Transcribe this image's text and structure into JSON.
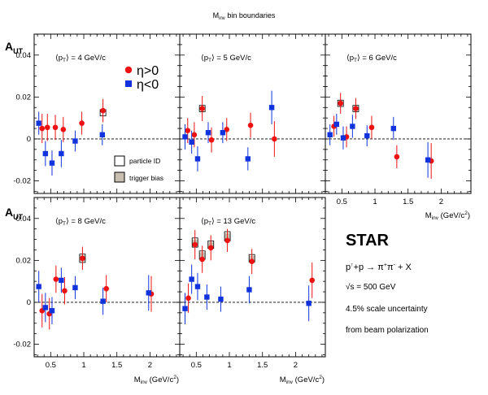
{
  "figure": {
    "top_title": "M",
    "top_title_sub": "inv",
    "top_title_rest": " bin boundaries",
    "ylabel_main": "A",
    "ylabel_sub": "UT",
    "xlabel_main": "M",
    "xlabel_sub": "inv",
    "xlabel_unit": " (GeV/c",
    "xlabel_sup": "2",
    "xlabel_close": ")",
    "star_label": "STAR",
    "reaction_p": "p",
    "reaction_arrow_sup": "↑",
    "reaction_rest": "+p → π",
    "reaction_pi_plus": "+",
    "reaction_pi2": "π",
    "reaction_pi_minus": "-",
    "reaction_end": " + X",
    "sqrt_s": "√s = 500 GeV",
    "scale_unc_line1": "4.5% scale uncertainty",
    "scale_unc_line2": "from beam polarization",
    "legend_eta_pos": "η>0",
    "legend_eta_neg": "η<0",
    "legend_pid": "particle ID",
    "legend_trig": "trigger bias",
    "colors": {
      "eta_pos": "#ee1111",
      "eta_neg": "#1133dd",
      "trig_fill": "#c8bfb0"
    }
  },
  "chart_data": [
    {
      "type": "scatter",
      "panel": "pt4",
      "title_pre": "⟨p",
      "title_sub": "T",
      "title_post": "⟩ = 4 GeV/c",
      "xlim": [
        0.25,
        2.45
      ],
      "ylim": [
        -0.026,
        0.05
      ],
      "yticks": [
        "0.04",
        "0.02",
        "0",
        "-0.02"
      ],
      "xticks": [],
      "series": [
        {
          "name": "η>0",
          "color": "#ee1111",
          "marker": "circle",
          "points": [
            [
              0.37,
              0.005,
              0.007
            ],
            [
              0.45,
              0.0055,
              0.0065
            ],
            [
              0.57,
              0.0055,
              0.006
            ],
            [
              0.69,
              0.0045,
              0.006
            ],
            [
              0.97,
              0.0075,
              0.0055
            ],
            [
              1.29,
              0.0135,
              0.0055
            ]
          ]
        },
        {
          "name": "η<0",
          "color": "#1133dd",
          "marker": "square",
          "points": [
            [
              0.32,
              0.0075,
              0.0055
            ],
            [
              0.42,
              -0.007,
              0.006
            ],
            [
              0.52,
              -0.0115,
              0.006
            ],
            [
              0.66,
              -0.007,
              0.0065
            ],
            [
              0.87,
              -0.001,
              0.005
            ],
            [
              1.28,
              0.002,
              0.005
            ]
          ]
        }
      ],
      "pid_boxes": [
        [
          1.29,
          0.0125,
          0.0015
        ]
      ],
      "trig_boxes": []
    },
    {
      "type": "scatter",
      "panel": "pt5",
      "title_pre": "⟨p",
      "title_sub": "T",
      "title_post": "⟩ = 5 GeV/c",
      "xlim": [
        0.25,
        2.45
      ],
      "ylim": [
        -0.026,
        0.05
      ],
      "yticks": [],
      "xticks": [],
      "series": [
        {
          "name": "η>0",
          "color": "#ee1111",
          "marker": "circle",
          "points": [
            [
              0.37,
              0.004,
              0.006
            ],
            [
              0.47,
              0.002,
              0.006
            ],
            [
              0.59,
              0.0145,
              0.006
            ],
            [
              0.73,
              -0.0005,
              0.006
            ],
            [
              0.96,
              0.0045,
              0.0055
            ],
            [
              1.32,
              0.0065,
              0.006
            ],
            [
              1.68,
              0.0,
              0.0085
            ]
          ]
        },
        {
          "name": "η<0",
          "color": "#1133dd",
          "marker": "square",
          "points": [
            [
              0.33,
              0.001,
              0.006
            ],
            [
              0.43,
              -0.0015,
              0.0055
            ],
            [
              0.52,
              -0.0095,
              0.006
            ],
            [
              0.68,
              0.003,
              0.005
            ],
            [
              0.9,
              0.003,
              0.005
            ],
            [
              1.28,
              -0.0095,
              0.0055
            ],
            [
              1.64,
              0.015,
              0.008
            ]
          ]
        }
      ],
      "pid_boxes": [
        [
          0.59,
          0.0145,
          0.0015
        ]
      ],
      "trig_boxes": []
    },
    {
      "type": "scatter",
      "panel": "pt6",
      "title_pre": "⟨p",
      "title_sub": "T",
      "title_post": "⟩ = 6 GeV/c",
      "xlim": [
        0.25,
        2.45
      ],
      "ylim": [
        -0.026,
        0.05
      ],
      "yticks": [],
      "xticks": [
        "0.5",
        "1",
        "1.5",
        "2"
      ],
      "series": [
        {
          "name": "η>0",
          "color": "#ee1111",
          "marker": "circle",
          "points": [
            [
              0.38,
              0.006,
              0.005
            ],
            [
              0.48,
              0.017,
              0.005
            ],
            [
              0.57,
              0.001,
              0.005
            ],
            [
              0.71,
              0.0145,
              0.005
            ],
            [
              0.95,
              0.0055,
              0.0055
            ],
            [
              1.33,
              -0.0085,
              0.0055
            ],
            [
              1.85,
              -0.0105,
              0.0085
            ]
          ]
        },
        {
          "name": "η<0",
          "color": "#1133dd",
          "marker": "square",
          "points": [
            [
              0.32,
              0.002,
              0.005
            ],
            [
              0.42,
              0.007,
              0.005
            ],
            [
              0.52,
              0.0005,
              0.0055
            ],
            [
              0.66,
              0.006,
              0.0055
            ],
            [
              0.88,
              0.0015,
              0.005
            ],
            [
              1.28,
              0.005,
              0.0055
            ],
            [
              1.8,
              -0.01,
              0.0085
            ]
          ]
        }
      ],
      "pid_boxes": [
        [
          0.48,
          0.017,
          0.0015
        ],
        [
          0.71,
          0.0145,
          0.0015
        ]
      ],
      "trig_boxes": []
    },
    {
      "type": "scatter",
      "panel": "pt8",
      "title_pre": "⟨p",
      "title_sub": "T",
      "title_post": "⟩ = 8 GeV/c",
      "xlim": [
        0.25,
        2.45
      ],
      "ylim": [
        -0.026,
        0.05
      ],
      "yticks": [
        "0.04",
        "0.02",
        "0",
        "-0.02"
      ],
      "xticks": [
        "0.5",
        "1",
        "1.5",
        "2"
      ],
      "series": [
        {
          "name": "η>0",
          "color": "#ee1111",
          "marker": "circle",
          "points": [
            [
              0.37,
              -0.004,
              0.008
            ],
            [
              0.48,
              -0.0055,
              0.0075
            ],
            [
              0.58,
              0.011,
              0.0065
            ],
            [
              0.71,
              0.0055,
              0.0065
            ],
            [
              0.98,
              0.021,
              0.0055
            ],
            [
              1.34,
              0.0065,
              0.0065
            ],
            [
              2.02,
              0.004,
              0.0085
            ]
          ]
        },
        {
          "name": "η<0",
          "color": "#1133dd",
          "marker": "square",
          "points": [
            [
              0.32,
              0.0075,
              0.0075
            ],
            [
              0.42,
              -0.0025,
              0.007
            ],
            [
              0.52,
              -0.004,
              0.0065
            ],
            [
              0.66,
              0.0105,
              0.006
            ],
            [
              0.87,
              0.007,
              0.0055
            ],
            [
              1.29,
              0.0005,
              0.0065
            ],
            [
              1.98,
              0.0045,
              0.0085
            ]
          ]
        }
      ],
      "pid_boxes": [
        [
          0.98,
          0.021,
          0.002
        ]
      ],
      "trig_boxes": [
        [
          0.98,
          0.021,
          0.0015
        ]
      ]
    },
    {
      "type": "scatter",
      "panel": "pt13",
      "title_pre": "⟨p",
      "title_sub": "T",
      "title_post": "⟩ = 13 GeV/c",
      "xlim": [
        0.25,
        2.45
      ],
      "ylim": [
        -0.026,
        0.05
      ],
      "yticks": [],
      "xticks": [
        "0.5",
        "1",
        "1.5",
        "2"
      ],
      "series": [
        {
          "name": "η>0",
          "color": "#ee1111",
          "marker": "circle",
          "points": [
            [
              0.38,
              0.002,
              0.007
            ],
            [
              0.48,
              0.0275,
              0.007
            ],
            [
              0.59,
              0.0205,
              0.0065
            ],
            [
              0.72,
              0.026,
              0.006
            ],
            [
              0.97,
              0.0295,
              0.0055
            ],
            [
              1.34,
              0.0195,
              0.006
            ],
            [
              2.25,
              0.0105,
              0.0085
            ]
          ]
        },
        {
          "name": "η<0",
          "color": "#1133dd",
          "marker": "square",
          "points": [
            [
              0.33,
              -0.003,
              0.0075
            ],
            [
              0.43,
              0.011,
              0.007
            ],
            [
              0.52,
              0.0075,
              0.0065
            ],
            [
              0.66,
              0.0025,
              0.006
            ],
            [
              0.87,
              0.0015,
              0.006
            ],
            [
              1.3,
              0.006,
              0.0065
            ],
            [
              2.2,
              -0.0005,
              0.0085
            ]
          ]
        }
      ],
      "pid_boxes": [
        [
          0.48,
          0.0285,
          0.0022
        ],
        [
          0.59,
          0.0225,
          0.002
        ],
        [
          0.72,
          0.0275,
          0.0018
        ],
        [
          0.97,
          0.0315,
          0.0022
        ],
        [
          1.34,
          0.021,
          0.0018
        ]
      ],
      "trig_boxes": [
        [
          0.48,
          0.0285,
          0.0015
        ],
        [
          0.59,
          0.0225,
          0.0014
        ],
        [
          0.72,
          0.0275,
          0.0012
        ],
        [
          0.97,
          0.0315,
          0.0015
        ],
        [
          1.34,
          0.021,
          0.0012
        ]
      ]
    }
  ]
}
